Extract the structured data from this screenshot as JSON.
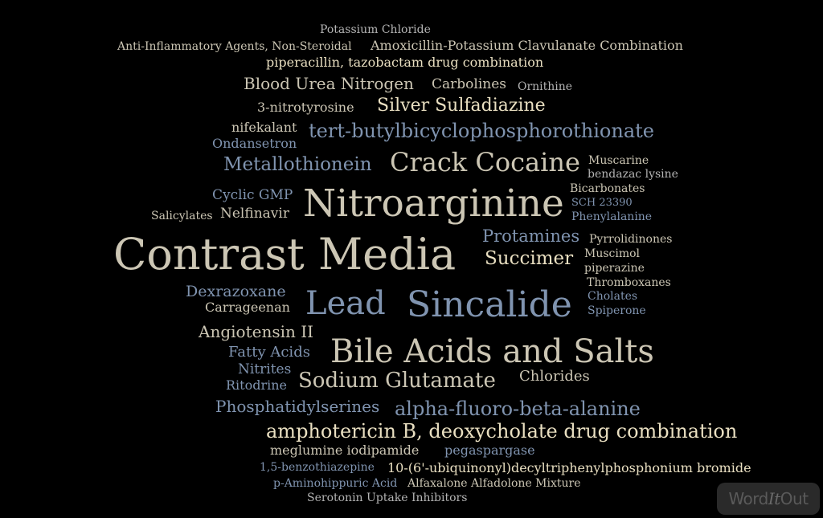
{
  "colors": {
    "background": "#000000",
    "light": "#ccc6b4",
    "cream": "#e9dfc1",
    "blue": "#8094b0",
    "pale": "#b4b4b4"
  },
  "words": [
    "Potassium Chloride",
    "Anti-Inflammatory Agents, Non-Steroidal",
    "Amoxicillin-Potassium Clavulanate Combination",
    "piperacillin, tazobactam drug combination",
    "Blood Urea Nitrogen",
    "Carbolines",
    "Ornithine",
    "3-nitrotyrosine",
    "Silver Sulfadiazine",
    "nifekalant",
    "tert-butylbicyclophosphorothionate",
    "Ondansetron",
    "Metallothionein",
    "Crack Cocaine",
    "Muscarine",
    "bendazac lysine",
    "Cyclic GMP",
    "Nitroarginine",
    "Bicarbonates",
    "SCH 23390",
    "Salicylates",
    "Nelfinavir",
    "Phenylalanine",
    "Contrast Media",
    "Protamines",
    "Pyrrolidinones",
    "Succimer",
    "Muscimol",
    "piperazine",
    "Dexrazoxane",
    "Thromboxanes",
    "Carrageenan",
    "Lead",
    "Sincalide",
    "Cholates",
    "Spiperone",
    "Angiotensin II",
    "Fatty Acids",
    "Bile Acids and Salts",
    "Nitrites",
    "Ritodrine",
    "Sodium Glutamate",
    "Chlorides",
    "Phosphatidylserines",
    "alpha-fluoro-beta-alanine",
    "amphotericin B, deoxycholate drug combination",
    "meglumine iodipamide",
    "pegaspargase",
    "1,5-benzothiazepine",
    "10-(6'-ubiquinonyl)decyltriphenylphosphonium bromide",
    "p-Aminohippuric Acid",
    "Alfaxalone Alfadolone Mixture",
    "Serotonin Uptake Inhibitors"
  ],
  "logo": {
    "part1": "Word",
    "part2": "It",
    "part3": "Out"
  }
}
